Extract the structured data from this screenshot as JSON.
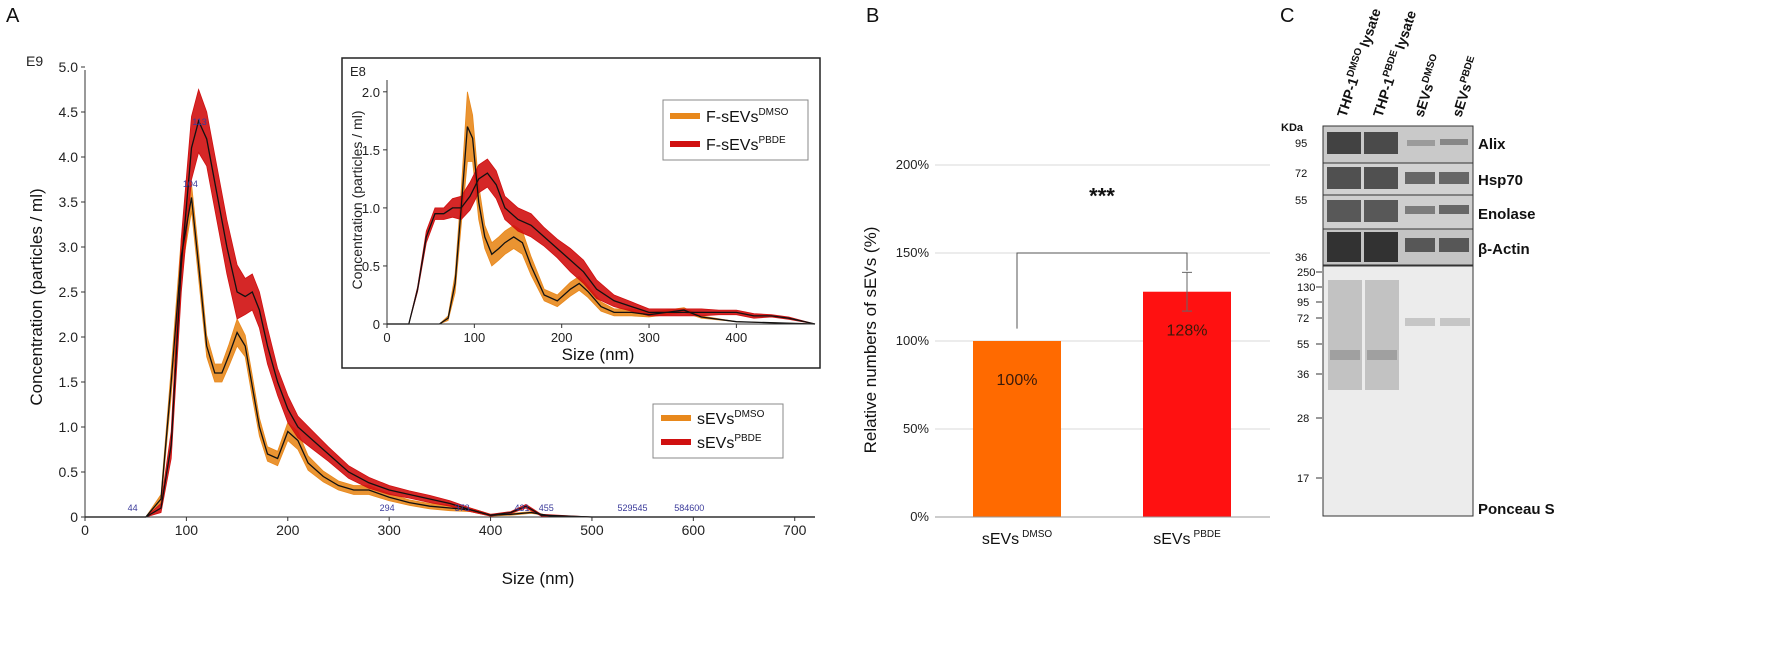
{
  "panels": {
    "a": "A",
    "b": "B",
    "c": "C"
  },
  "chart_data": [
    {
      "type": "line",
      "panel": "A",
      "title": "",
      "exponent_label": "E9",
      "xlabel": "Size (nm)",
      "ylabel": "Concentration (particles / ml)",
      "xlim": [
        0,
        720
      ],
      "ylim": [
        0,
        5.0
      ],
      "x_ticks": [
        "0",
        "100",
        "200",
        "300",
        "400",
        "500",
        "600",
        "700"
      ],
      "y_ticks": [
        "0",
        "0.5",
        "1.0",
        "1.5",
        "2.0",
        "2.5",
        "3.0",
        "3.5",
        "4.0",
        "4.5",
        "5.0"
      ],
      "legend": [
        {
          "name": "sEVs",
          "superscript": "DMSO",
          "color": "#e8881c"
        },
        {
          "name": "sEVs",
          "superscript": "PBDE",
          "color": "#d01010"
        }
      ],
      "series": [
        {
          "name": "sEVs DMSO",
          "color": "#e8881c",
          "x": [
            0,
            60,
            75,
            85,
            95,
            105,
            112,
            120,
            128,
            135,
            142,
            150,
            158,
            165,
            172,
            180,
            190,
            200,
            210,
            220,
            235,
            250,
            265,
            280,
            300,
            320,
            340,
            360,
            380,
            400,
            420,
            440,
            460,
            500,
            600,
            720
          ],
          "y": [
            0,
            0,
            0.2,
            1.5,
            2.9,
            3.55,
            2.8,
            1.9,
            1.6,
            1.6,
            1.8,
            2.05,
            1.9,
            1.45,
            1.0,
            0.7,
            0.65,
            0.95,
            0.85,
            0.6,
            0.45,
            0.35,
            0.3,
            0.3,
            0.22,
            0.16,
            0.12,
            0.1,
            0.08,
            0.02,
            0.03,
            0.05,
            0.01,
            0,
            0,
            0
          ],
          "band": [
            0,
            0,
            0.05,
            0.15,
            0.2,
            0.15,
            0.15,
            0.12,
            0.1,
            0.1,
            0.12,
            0.15,
            0.12,
            0.12,
            0.1,
            0.08,
            0.08,
            0.1,
            0.1,
            0.08,
            0.06,
            0.05,
            0.05,
            0.05,
            0.04,
            0.03,
            0.03,
            0.03,
            0.02,
            0.01,
            0.01,
            0.01,
            0,
            0,
            0,
            0
          ]
        },
        {
          "name": "sEVs PBDE",
          "color": "#d01010",
          "x": [
            0,
            60,
            75,
            85,
            95,
            105,
            112,
            120,
            130,
            140,
            150,
            158,
            165,
            172,
            180,
            190,
            200,
            210,
            225,
            240,
            260,
            280,
            300,
            320,
            340,
            360,
            380,
            400,
            420,
            435,
            450,
            500,
            600,
            720
          ],
          "y": [
            0,
            0,
            0.1,
            0.8,
            2.8,
            4.1,
            4.4,
            4.2,
            3.6,
            3.0,
            2.5,
            2.45,
            2.5,
            2.3,
            1.9,
            1.5,
            1.2,
            1.0,
            0.85,
            0.7,
            0.5,
            0.38,
            0.3,
            0.25,
            0.2,
            0.15,
            0.08,
            0.02,
            0.05,
            0.12,
            0.02,
            0,
            0,
            0
          ],
          "band": [
            0,
            0,
            0.05,
            0.15,
            0.3,
            0.35,
            0.35,
            0.3,
            0.3,
            0.3,
            0.3,
            0.2,
            0.2,
            0.2,
            0.2,
            0.15,
            0.15,
            0.12,
            0.1,
            0.08,
            0.07,
            0.06,
            0.05,
            0.04,
            0.04,
            0.03,
            0.02,
            0.01,
            0.01,
            0.02,
            0.01,
            0,
            0,
            0
          ]
        }
      ],
      "peak_annotations": [
        {
          "x": 47,
          "text": "44"
        },
        {
          "x": 104,
          "text": "104"
        },
        {
          "x": 113,
          "text": "113"
        },
        {
          "x": 298,
          "text": "294"
        },
        {
          "x": 372,
          "text": "373"
        },
        {
          "x": 431,
          "text": "431"
        },
        {
          "x": 455,
          "text": "455"
        },
        {
          "x": 540,
          "text": "529545"
        },
        {
          "x": 596,
          "text": "584600"
        }
      ]
    },
    {
      "type": "line",
      "panel": "A-inset",
      "exponent_label": "E8",
      "xlabel": "Size (nm)",
      "ylabel": "Concentration (particles / ml)",
      "xlim": [
        0,
        490
      ],
      "ylim": [
        0,
        2.05
      ],
      "x_ticks": [
        "0",
        "100",
        "200",
        "300",
        "400"
      ],
      "y_ticks": [
        "0",
        "0.5",
        "1.0",
        "1.5",
        "2.0"
      ],
      "legend": [
        {
          "name": "F-sEVs",
          "superscript": "DMSO",
          "color": "#e8881c"
        },
        {
          "name": "F-sEVs",
          "superscript": "PBDE",
          "color": "#d01010"
        }
      ],
      "series": [
        {
          "name": "F-sEVs DMSO",
          "color": "#e8881c",
          "x": [
            0,
            60,
            70,
            78,
            85,
            92,
            98,
            105,
            112,
            120,
            128,
            135,
            145,
            155,
            165,
            180,
            195,
            210,
            220,
            230,
            245,
            260,
            280,
            300,
            320,
            340,
            360,
            400,
            490
          ],
          "y": [
            0,
            0,
            0.05,
            0.35,
            1.0,
            1.7,
            1.6,
            1.05,
            0.75,
            0.6,
            0.65,
            0.7,
            0.75,
            0.7,
            0.5,
            0.25,
            0.2,
            0.3,
            0.35,
            0.28,
            0.15,
            0.1,
            0.1,
            0.08,
            0.1,
            0.12,
            0.06,
            0.02,
            0
          ],
          "band": [
            0,
            0,
            0.02,
            0.08,
            0.15,
            0.3,
            0.2,
            0.15,
            0.1,
            0.1,
            0.1,
            0.1,
            0.1,
            0.1,
            0.08,
            0.05,
            0.05,
            0.06,
            0.06,
            0.05,
            0.04,
            0.03,
            0.03,
            0.02,
            0.02,
            0.02,
            0.01,
            0,
            0
          ]
        },
        {
          "name": "F-sEVs PBDE",
          "color": "#d01010",
          "x": [
            0,
            25,
            35,
            45,
            55,
            65,
            75,
            85,
            95,
            105,
            115,
            125,
            135,
            150,
            165,
            180,
            195,
            210,
            225,
            240,
            260,
            280,
            300,
            320,
            340,
            360,
            380,
            400,
            420,
            440,
            460,
            490
          ],
          "y": [
            0,
            0,
            0.3,
            0.75,
            0.95,
            0.95,
            1.0,
            1.0,
            1.1,
            1.25,
            1.3,
            1.2,
            1.0,
            0.9,
            0.85,
            0.75,
            0.65,
            0.55,
            0.45,
            0.3,
            0.2,
            0.15,
            0.1,
            0.1,
            0.1,
            0.1,
            0.1,
            0.1,
            0.07,
            0.07,
            0.05,
            0
          ],
          "band": [
            0,
            0,
            0.02,
            0.05,
            0.05,
            0.05,
            0.08,
            0.1,
            0.12,
            0.12,
            0.12,
            0.12,
            0.1,
            0.1,
            0.1,
            0.08,
            0.08,
            0.1,
            0.1,
            0.08,
            0.05,
            0.04,
            0.03,
            0.03,
            0.03,
            0.03,
            0.02,
            0.02,
            0.02,
            0.01,
            0.01,
            0
          ]
        }
      ]
    },
    {
      "type": "bar",
      "panel": "B",
      "categories": [
        {
          "name": "sEVs",
          "superscript": "DMSO"
        },
        {
          "name": "sEVs",
          "superscript": "PBDE"
        }
      ],
      "values": [
        100,
        128
      ],
      "value_labels": [
        "100%",
        "128%"
      ],
      "colors": [
        "#ff6a00",
        "#ff1111"
      ],
      "error": [
        0,
        11
      ],
      "ylabel": "Relative numbers of sEVs (%)",
      "ylim": [
        0,
        200
      ],
      "y_ticks": [
        "0%",
        "50%",
        "100%",
        "150%",
        "200%"
      ],
      "grid": true,
      "significance": "***"
    }
  ],
  "blot": {
    "lanes": [
      "THP-1",
      "THP-1",
      "sEVs",
      "sEVs"
    ],
    "lane_sups": [
      "DMSO",
      "PBDE",
      "DMSO",
      "PBDE"
    ],
    "lane_suffix": [
      "lysate",
      "lysate",
      "",
      ""
    ],
    "kda_header": "KDa",
    "proteins": [
      "Alix",
      "Hsp70",
      "Enolase",
      "β-Actin"
    ],
    "protein_markers": [
      "95",
      "72",
      "55",
      "36"
    ],
    "ponceau_markers": [
      "250",
      "130",
      "95",
      "72",
      "55",
      "36",
      "28",
      "17"
    ],
    "ponceau_label": "Ponceau S"
  }
}
